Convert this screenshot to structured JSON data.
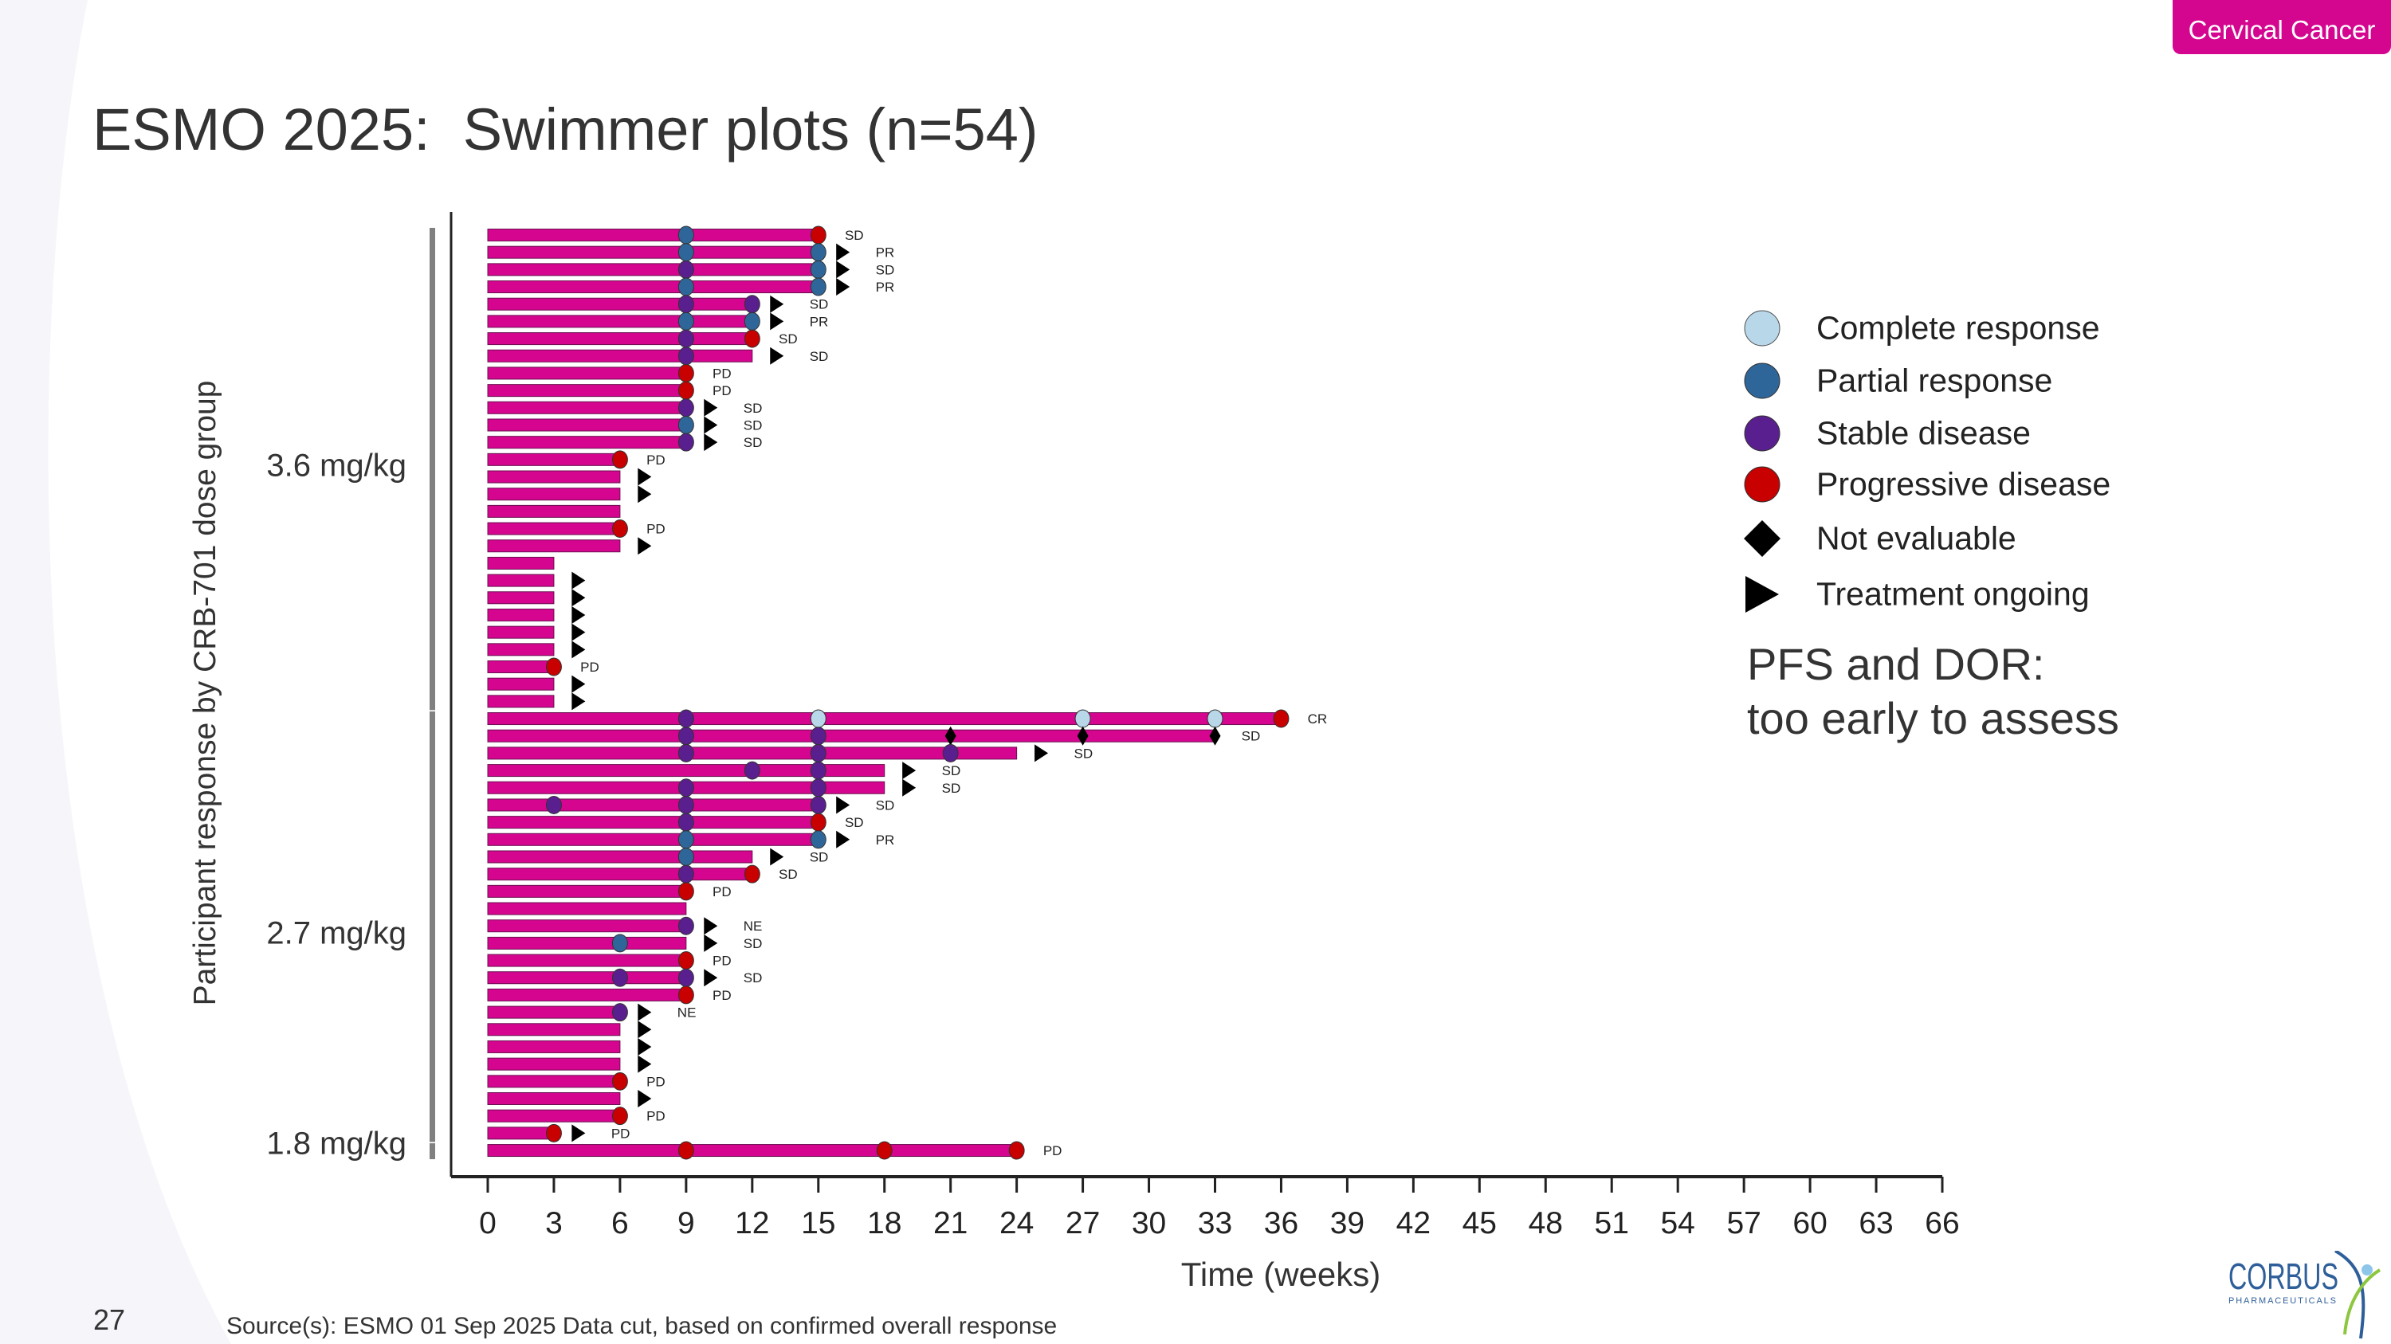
{
  "badge": "Cervical Cancer",
  "title": "ESMO 2025:  Swimmer plots (n=54)",
  "page_number": "27",
  "source": "Source(s): ESMO 01 Sep 2025 Data cut, based on confirmed  overall response",
  "logo": {
    "name": "CORBUS",
    "sub": "PHARMACEUTICALS"
  },
  "note": {
    "line1": "PFS and DOR:",
    "line2": "too early to assess"
  },
  "colors": {
    "bar": "#d6058f",
    "CR": "#b8d8ea",
    "PR": "#2f6699",
    "SD": "#5a1f8e",
    "PD": "#c80000",
    "NE": "#000000",
    "axis": "#222222",
    "group_bar": "#808080"
  },
  "chart_data": {
    "type": "swimmer",
    "title": "ESMO 2025:  Swimmer plots (n=54)",
    "xlabel": "Time (weeks)",
    "ylabel": "Participant response by CRB-701 dose group",
    "xlim": [
      0,
      66
    ],
    "x_ticks": [
      0,
      3,
      6,
      9,
      12,
      15,
      18,
      21,
      24,
      27,
      30,
      33,
      36,
      39,
      42,
      45,
      48,
      51,
      54,
      57,
      60,
      63,
      66
    ],
    "legend": [
      {
        "key": "CR",
        "shape": "circle",
        "label": "Complete response"
      },
      {
        "key": "PR",
        "shape": "circle",
        "label": "Partial response"
      },
      {
        "key": "SD",
        "shape": "circle",
        "label": "Stable disease"
      },
      {
        "key": "PD",
        "shape": "circle",
        "label": "Progressive disease"
      },
      {
        "key": "NE",
        "shape": "diamond",
        "label": "Not evaluable"
      },
      {
        "key": "ongoing",
        "shape": "triangle",
        "label": "Treatment ongoing"
      }
    ],
    "groups": [
      {
        "label": "3.6 mg/kg",
        "first_row": 0,
        "last_row": 27
      },
      {
        "label": "2.7 mg/kg",
        "first_row": 28,
        "last_row": 52
      },
      {
        "label": "1.8 mg/kg",
        "first_row": 53,
        "last_row": 53
      }
    ],
    "rows": [
      {
        "end": 15,
        "marks": [
          [
            9,
            "PR"
          ],
          [
            15,
            "PD"
          ]
        ],
        "ongoing": false,
        "label": "SD"
      },
      {
        "end": 15,
        "marks": [
          [
            9,
            "PR"
          ],
          [
            15,
            "PR"
          ]
        ],
        "ongoing": true,
        "label": "PR"
      },
      {
        "end": 15,
        "marks": [
          [
            9,
            "SD"
          ],
          [
            15,
            "PR"
          ]
        ],
        "ongoing": true,
        "label": "SD"
      },
      {
        "end": 15,
        "marks": [
          [
            9,
            "PR"
          ],
          [
            15,
            "PR"
          ]
        ],
        "ongoing": true,
        "label": "PR"
      },
      {
        "end": 12,
        "marks": [
          [
            9,
            "SD"
          ],
          [
            12,
            "SD"
          ]
        ],
        "ongoing": true,
        "label": "SD"
      },
      {
        "end": 12,
        "marks": [
          [
            9,
            "PR"
          ],
          [
            12,
            "PR"
          ]
        ],
        "ongoing": true,
        "label": "PR"
      },
      {
        "end": 12,
        "marks": [
          [
            9,
            "SD"
          ],
          [
            12,
            "PD"
          ]
        ],
        "ongoing": false,
        "label": "SD"
      },
      {
        "end": 12,
        "marks": [
          [
            9,
            "SD"
          ]
        ],
        "ongoing": true,
        "label": "SD"
      },
      {
        "end": 9,
        "marks": [
          [
            9,
            "PD"
          ]
        ],
        "ongoing": false,
        "label": "PD"
      },
      {
        "end": 9,
        "marks": [
          [
            9,
            "PD"
          ]
        ],
        "ongoing": false,
        "label": "PD"
      },
      {
        "end": 9,
        "marks": [
          [
            9,
            "SD"
          ]
        ],
        "ongoing": true,
        "label": "SD"
      },
      {
        "end": 9,
        "marks": [
          [
            9,
            "PR"
          ]
        ],
        "ongoing": true,
        "label": "SD"
      },
      {
        "end": 9,
        "marks": [
          [
            9,
            "SD"
          ]
        ],
        "ongoing": true,
        "label": "SD"
      },
      {
        "end": 6,
        "marks": [
          [
            6,
            "PD"
          ]
        ],
        "ongoing": false,
        "label": "PD"
      },
      {
        "end": 6,
        "marks": [],
        "ongoing": true,
        "label": ""
      },
      {
        "end": 6,
        "marks": [],
        "ongoing": true,
        "label": ""
      },
      {
        "end": 6,
        "marks": [],
        "ongoing": false,
        "label": ""
      },
      {
        "end": 6,
        "marks": [
          [
            6,
            "PD"
          ]
        ],
        "ongoing": false,
        "label": "PD"
      },
      {
        "end": 6,
        "marks": [],
        "ongoing": true,
        "label": ""
      },
      {
        "end": 3,
        "marks": [],
        "ongoing": false,
        "label": ""
      },
      {
        "end": 3,
        "marks": [],
        "ongoing": true,
        "label": ""
      },
      {
        "end": 3,
        "marks": [],
        "ongoing": true,
        "label": ""
      },
      {
        "end": 3,
        "marks": [],
        "ongoing": true,
        "label": ""
      },
      {
        "end": 3,
        "marks": [],
        "ongoing": true,
        "label": ""
      },
      {
        "end": 3,
        "marks": [],
        "ongoing": true,
        "label": ""
      },
      {
        "end": 3,
        "marks": [
          [
            3,
            "PD"
          ]
        ],
        "ongoing": false,
        "label": "PD"
      },
      {
        "end": 3,
        "marks": [],
        "ongoing": true,
        "label": ""
      },
      {
        "end": 3,
        "marks": [],
        "ongoing": true,
        "label": ""
      },
      {
        "end": 36,
        "marks": [
          [
            9,
            "SD"
          ],
          [
            15,
            "CR"
          ],
          [
            27,
            "CR"
          ],
          [
            33,
            "CR"
          ],
          [
            36,
            "PD"
          ]
        ],
        "ongoing": false,
        "label": "CR"
      },
      {
        "end": 33,
        "marks": [
          [
            9,
            "SD"
          ],
          [
            15,
            "SD"
          ],
          [
            21,
            "NE"
          ],
          [
            27,
            "NE"
          ],
          [
            33,
            "NE"
          ]
        ],
        "ongoing": false,
        "label": "SD"
      },
      {
        "end": 24,
        "marks": [
          [
            9,
            "SD"
          ],
          [
            15,
            "SD"
          ],
          [
            21,
            "SD"
          ]
        ],
        "ongoing": true,
        "label": "SD"
      },
      {
        "end": 18,
        "marks": [
          [
            12,
            "SD"
          ],
          [
            15,
            "SD"
          ]
        ],
        "ongoing": true,
        "label": "SD"
      },
      {
        "end": 18,
        "marks": [
          [
            9,
            "SD"
          ],
          [
            15,
            "SD"
          ]
        ],
        "ongoing": true,
        "label": "SD"
      },
      {
        "end": 15,
        "marks": [
          [
            3,
            "SD"
          ],
          [
            9,
            "SD"
          ],
          [
            15,
            "SD"
          ]
        ],
        "ongoing": true,
        "label": "SD"
      },
      {
        "end": 15,
        "marks": [
          [
            9,
            "SD"
          ],
          [
            15,
            "PD"
          ]
        ],
        "ongoing": false,
        "label": "SD"
      },
      {
        "end": 15,
        "marks": [
          [
            9,
            "PR"
          ],
          [
            15,
            "PR"
          ]
        ],
        "ongoing": true,
        "label": "PR"
      },
      {
        "end": 12,
        "marks": [
          [
            9,
            "PR"
          ]
        ],
        "ongoing": true,
        "label": "SD"
      },
      {
        "end": 12,
        "marks": [
          [
            9,
            "SD"
          ],
          [
            12,
            "PD"
          ]
        ],
        "ongoing": false,
        "label": "SD"
      },
      {
        "end": 9,
        "marks": [
          [
            9,
            "PD"
          ]
        ],
        "ongoing": false,
        "label": "PD"
      },
      {
        "end": 9,
        "marks": [],
        "ongoing": false,
        "label": ""
      },
      {
        "end": 9,
        "marks": [
          [
            9,
            "SD"
          ]
        ],
        "ongoing": true,
        "label": "NE"
      },
      {
        "end": 9,
        "marks": [
          [
            6,
            "PR"
          ]
        ],
        "ongoing": true,
        "label": "SD"
      },
      {
        "end": 9,
        "marks": [
          [
            9,
            "PD"
          ]
        ],
        "ongoing": false,
        "label": "PD"
      },
      {
        "end": 9,
        "marks": [
          [
            6,
            "SD"
          ],
          [
            9,
            "SD"
          ]
        ],
        "ongoing": true,
        "label": "SD"
      },
      {
        "end": 9,
        "marks": [
          [
            9,
            "PD"
          ]
        ],
        "ongoing": false,
        "label": "PD"
      },
      {
        "end": 6,
        "marks": [
          [
            6,
            "SD"
          ]
        ],
        "ongoing": true,
        "label": "NE"
      },
      {
        "end": 6,
        "marks": [],
        "ongoing": true,
        "label": ""
      },
      {
        "end": 6,
        "marks": [],
        "ongoing": true,
        "label": ""
      },
      {
        "end": 6,
        "marks": [],
        "ongoing": true,
        "label": ""
      },
      {
        "end": 6,
        "marks": [
          [
            6,
            "PD"
          ]
        ],
        "ongoing": false,
        "label": "PD"
      },
      {
        "end": 6,
        "marks": [],
        "ongoing": true,
        "label": ""
      },
      {
        "end": 6,
        "marks": [
          [
            6,
            "PD"
          ]
        ],
        "ongoing": false,
        "label": "PD"
      },
      {
        "end": 3,
        "marks": [
          [
            3,
            "PD"
          ]
        ],
        "ongoing": true,
        "label": "PD"
      },
      {
        "end": 24,
        "marks": [
          [
            9,
            "PD"
          ],
          [
            18,
            "PD"
          ],
          [
            24,
            "PD"
          ]
        ],
        "ongoing": false,
        "label": "PD"
      }
    ]
  }
}
